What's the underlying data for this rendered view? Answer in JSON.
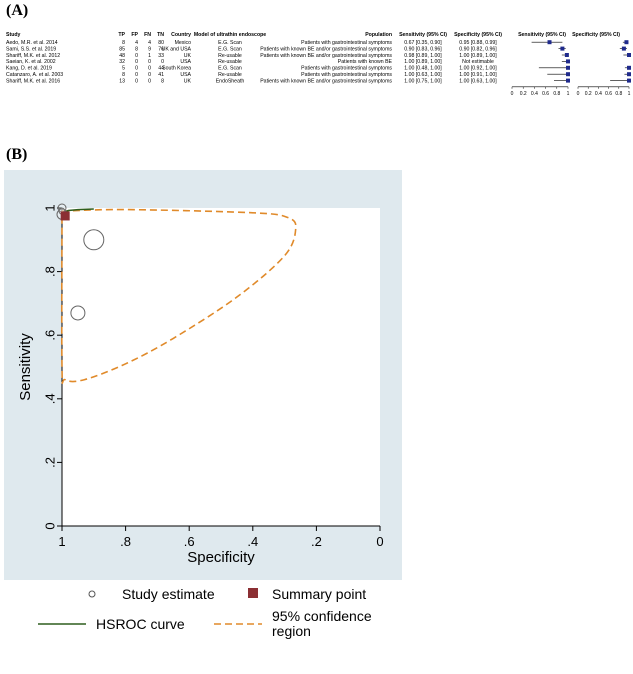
{
  "panels": {
    "a_label": "(A)",
    "b_label": "(B)"
  },
  "forest": {
    "headers": {
      "study": "Study",
      "tp": "TP",
      "fp": "FP",
      "fn": "FN",
      "tn": "TN",
      "country": "Country",
      "model": "Model of ultrathin endoscope",
      "population": "Population",
      "sens": "Sensitivity (95% CI)",
      "spec": "Specificity (95% CI)",
      "sens_plot": "Sensitivity (95% CI)",
      "spec_plot": "Specificity (95% CI)"
    },
    "rows": [
      {
        "study": "Aedo, M.R. et al. 2014",
        "tp": "8",
        "fp": "4",
        "fn": "4",
        "tn": "80",
        "country": "Mexico",
        "model": "E.G. Scan",
        "population": "Patients with gastrointestinal symptoms",
        "sens": "0.67 [0.35, 0.90]",
        "spec": "0.95 [0.88, 0.99]"
      },
      {
        "study": "Sami, S.S. et al. 2019",
        "tp": "85",
        "fp": "8",
        "fn": "9",
        "tn": "76",
        "country": "UK and USA",
        "model": "E.G. Scan",
        "population": "Patients with known BE and/or gastrointestinal symptoms",
        "sens": "0.90 [0.83, 0.96]",
        "spec": "0.90 [0.82, 0.96]"
      },
      {
        "study": "Shariff, M.K. et al. 2012",
        "tp": "48",
        "fp": "0",
        "fn": "1",
        "tn": "33",
        "country": "UK",
        "model": "Re-usable",
        "population": "Patients with known BE and/or gastrointestinal symptoms",
        "sens": "0.98 [0.89, 1.00]",
        "spec": "1.00 [0.89, 1.00]"
      },
      {
        "study": "Saeian, K. et al. 2002",
        "tp": "32",
        "fp": "0",
        "fn": "0",
        "tn": "0",
        "country": "USA",
        "model": "Re-usable",
        "population": "Patients with known BE",
        "sens": "1.00 [0.89, 1.00]",
        "spec": "Not estimable"
      },
      {
        "study": "Kang, D. et al. 2019",
        "tp": "5",
        "fp": "0",
        "fn": "0",
        "tn": "44",
        "country": "South Korea",
        "model": "E.G. Scan",
        "population": "Patients with gastrointestinal symptoms",
        "sens": "1.00 [0.48, 1.00]",
        "spec": "1.00 [0.92, 1.00]"
      },
      {
        "study": "Catanzaro, A. et al. 2003",
        "tp": "8",
        "fp": "0",
        "fn": "0",
        "tn": "41",
        "country": "USA",
        "model": "Re-usable",
        "population": "Patients with gastrointestinal symptoms",
        "sens": "1.00 [0.63, 1.00]",
        "spec": "1.00 [0.91, 1.00]"
      },
      {
        "study": "Shariff, M.K. et al. 2016",
        "tp": "13",
        "fp": "0",
        "fn": "0",
        "tn": "8",
        "country": "UK",
        "model": "EndoSheath",
        "population": "Patients with known BE and/or gastrointestinal symptoms",
        "sens": "1.00 [0.75, 1.00]",
        "spec": "1.00 [0.63, 1.00]"
      }
    ],
    "ticks_sens": [
      "0",
      "0.2",
      "0.4",
      "0.6",
      "0.8",
      "1"
    ],
    "ticks_spec": [
      "0",
      "0.2",
      "0.4",
      "0.6",
      "0.8",
      "1"
    ]
  },
  "chart_data": {
    "type": "scatter",
    "forest_sensitivity": [
      {
        "est": 0.67,
        "lo": 0.35,
        "hi": 0.9
      },
      {
        "est": 0.9,
        "lo": 0.83,
        "hi": 0.96
      },
      {
        "est": 0.98,
        "lo": 0.89,
        "hi": 1.0
      },
      {
        "est": 1.0,
        "lo": 0.89,
        "hi": 1.0
      },
      {
        "est": 1.0,
        "lo": 0.48,
        "hi": 1.0
      },
      {
        "est": 1.0,
        "lo": 0.63,
        "hi": 1.0
      },
      {
        "est": 1.0,
        "lo": 0.75,
        "hi": 1.0
      }
    ],
    "forest_specificity": [
      {
        "est": 0.95,
        "lo": 0.88,
        "hi": 0.99
      },
      {
        "est": 0.9,
        "lo": 0.82,
        "hi": 0.96
      },
      {
        "est": 1.0,
        "lo": 0.89,
        "hi": 1.0
      },
      null,
      {
        "est": 1.0,
        "lo": 0.92,
        "hi": 1.0
      },
      {
        "est": 1.0,
        "lo": 0.91,
        "hi": 1.0
      },
      {
        "est": 1.0,
        "lo": 0.63,
        "hi": 1.0
      }
    ],
    "xlabel": "Specificity",
    "ylabel": "Sensitivity",
    "xlim": [
      1,
      0
    ],
    "ylim": [
      0,
      1
    ],
    "x_ticks": [
      "1",
      ".8",
      ".6",
      ".4",
      ".2",
      "0"
    ],
    "y_ticks": [
      "0",
      ".2",
      ".4",
      ".6",
      ".8",
      "1"
    ],
    "study_estimates": [
      {
        "spec": 0.95,
        "sens": 0.67,
        "r": 7
      },
      {
        "spec": 0.9,
        "sens": 0.9,
        "r": 10
      },
      {
        "spec": 1.0,
        "sens": 0.98,
        "r": 5
      },
      {
        "spec": 1.0,
        "sens": 1.0,
        "r": 4
      },
      {
        "spec": 1.0,
        "sens": 0.99,
        "r": 3
      }
    ],
    "summary_point": {
      "spec": 0.99,
      "sens": 0.975
    },
    "hsroc_curve": [
      [
        1.0,
        0.985
      ],
      [
        0.98,
        0.992
      ],
      [
        0.95,
        0.995
      ],
      [
        0.9,
        0.997
      ]
    ],
    "confidence_region": [
      [
        1.0,
        0.99
      ],
      [
        0.8,
        0.995
      ],
      [
        0.4,
        0.985
      ],
      [
        0.29,
        0.97
      ],
      [
        0.265,
        0.935
      ],
      [
        0.3,
        0.85
      ],
      [
        0.45,
        0.72
      ],
      [
        0.65,
        0.59
      ],
      [
        0.8,
        0.51
      ],
      [
        0.93,
        0.46
      ],
      [
        0.99,
        0.46
      ],
      [
        1.0,
        0.5
      ],
      [
        1.0,
        0.99
      ]
    ],
    "legend": {
      "study": "Study estimate",
      "summary": "Summary point",
      "hsroc": "HSROC curve",
      "region": "95% confidence region"
    },
    "colors": {
      "summary": "#8b2f33",
      "hsroc": "#2e5e1e",
      "region": "#e08a2a",
      "estimate": "#666666",
      "background": "#dfe9ee"
    }
  }
}
